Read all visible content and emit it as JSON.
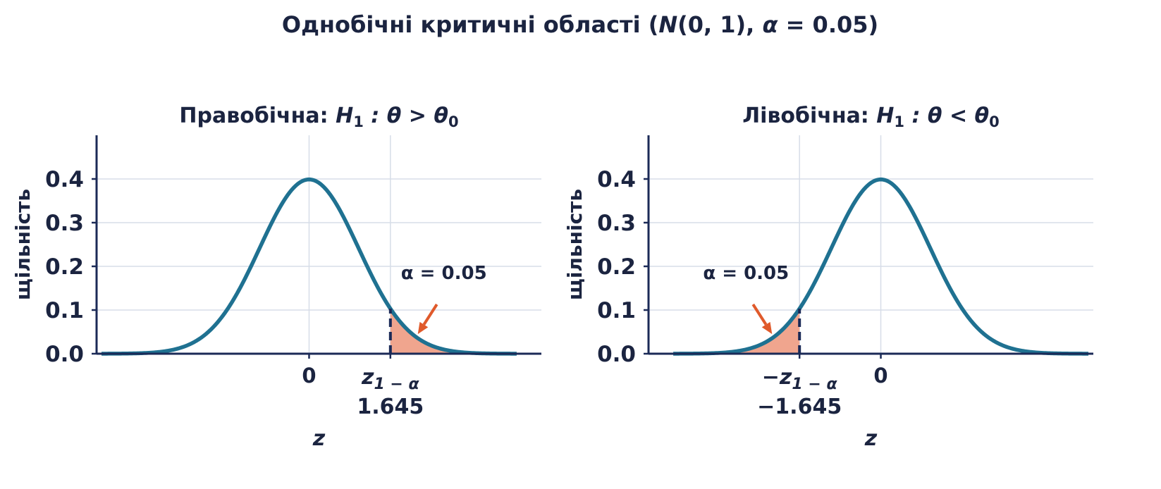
{
  "figure": {
    "title_main": "Однобічні критичні області (",
    "title_N": "N",
    "title_args": "(0, 1), ",
    "title_alpha": "α",
    "title_eq": " = 0.05)"
  },
  "colors": {
    "curve": "#1f7191",
    "fill": "#f0a58e",
    "arrow": "#e05a2b",
    "text": "#1b2440",
    "axis": "#1b2a57",
    "grid": "#d7dde8"
  },
  "chart_data": [
    {
      "type": "line",
      "title_prefix": "Правобічна: ",
      "title_H": "H",
      "title_H_sub": "1",
      "title_cond": " :  θ > θ",
      "title_cond_sub": "0",
      "xlabel": "z",
      "ylabel": "щільність",
      "xlim": [
        -4.3,
        4.7
      ],
      "ylim": [
        0,
        0.5
      ],
      "yticks": [
        "0.0",
        "0.1",
        "0.2",
        "0.3",
        "0.4"
      ],
      "ytick_values": [
        0,
        0.1,
        0.2,
        0.3,
        0.4
      ],
      "grid": true,
      "series": [
        {
          "function": "standard normal pdf",
          "x_range": [
            -4.2,
            4.2
          ]
        }
      ],
      "critical_value": 1.645,
      "critical_text": "1.645",
      "critical_symbol": "z",
      "critical_sub": "1 − α",
      "zero_label": "0",
      "tail": "right",
      "shaded_area": 0.05,
      "annotation": {
        "text": "α = 0.05",
        "arrow_target": [
          2.2,
          0.045
        ]
      }
    },
    {
      "type": "line",
      "title_prefix": "Лівобічна: ",
      "title_H": "H",
      "title_H_sub": "1",
      "title_cond": " :  θ < θ",
      "title_cond_sub": "0",
      "xlabel": "z",
      "ylabel": "щільність",
      "xlim": [
        -4.7,
        4.3
      ],
      "ylim": [
        0,
        0.5
      ],
      "yticks": [
        "0.0",
        "0.1",
        "0.2",
        "0.3",
        "0.4"
      ],
      "ytick_values": [
        0,
        0.1,
        0.2,
        0.3,
        0.4
      ],
      "grid": true,
      "series": [
        {
          "function": "standard normal pdf",
          "x_range": [
            -4.2,
            4.2
          ]
        }
      ],
      "critical_value": -1.645,
      "critical_text": "−1.645",
      "critical_symbol": "−z",
      "critical_sub": "1 − α",
      "zero_label": "0",
      "tail": "left",
      "shaded_area": 0.05,
      "annotation": {
        "text": "α = 0.05",
        "arrow_target": [
          -2.2,
          0.045
        ]
      }
    }
  ]
}
